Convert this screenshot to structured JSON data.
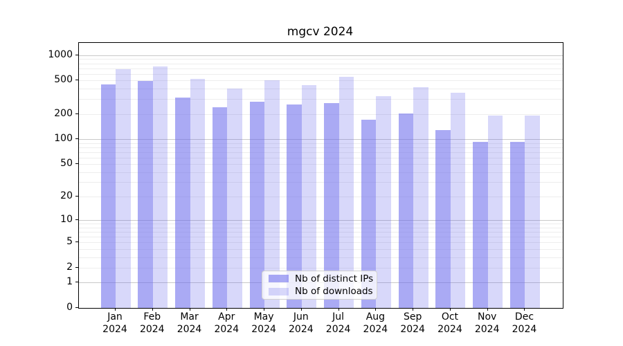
{
  "chart_data": {
    "type": "bar",
    "title": "mgcv 2024",
    "categories": [
      "Jan",
      "Feb",
      "Mar",
      "Apr",
      "May",
      "Jun",
      "Jul",
      "Aug",
      "Sep",
      "Oct",
      "Nov",
      "Dec"
    ],
    "category_year": "2024",
    "series": [
      {
        "name": "Nb of distinct IPs",
        "color": "rgba(100,100,235,0.55)",
        "values": [
          450,
          490,
          315,
          240,
          282,
          257,
          267,
          172,
          202,
          128,
          93,
          93
        ]
      },
      {
        "name": "Nb of downloads",
        "color": "rgba(100,100,235,0.25)",
        "values": [
          685,
          730,
          528,
          400,
          505,
          445,
          550,
          325,
          420,
          360,
          192,
          193
        ]
      }
    ],
    "yscale": "symlog",
    "yticks": [
      0,
      1,
      2,
      5,
      10,
      20,
      50,
      100,
      200,
      500,
      1000
    ],
    "ylim": [
      0,
      1400
    ],
    "xlabel": "",
    "ylabel": "",
    "grid": true,
    "legend_position": "lower center"
  },
  "colors": {
    "major_grid": "#c9c9c9",
    "minor_grid": "#ededed",
    "axis": "#000000",
    "background": "#ffffff",
    "bar_base": "#6464eb"
  }
}
